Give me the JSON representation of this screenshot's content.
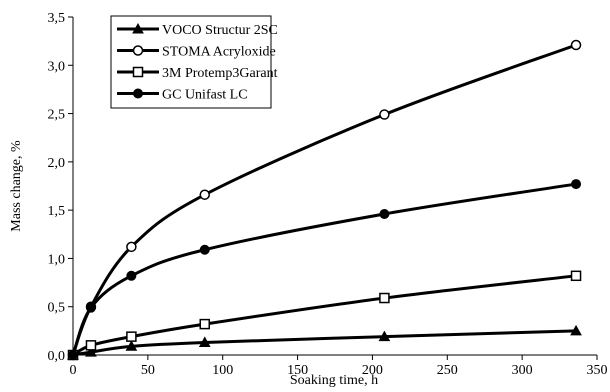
{
  "chart_data": {
    "type": "line",
    "xlabel": "Soaking time, h",
    "ylabel": "Mass change, %",
    "xlim": [
      0,
      350
    ],
    "ylim": [
      0,
      3.5
    ],
    "x_ticks": [
      0,
      50,
      100,
      150,
      200,
      250,
      300,
      350
    ],
    "y_ticks": [
      0,
      0.5,
      1.0,
      1.5,
      2.0,
      2.5,
      3.0,
      3.5
    ],
    "x_tick_labels": [
      "0",
      "50",
      "100",
      "150",
      "200",
      "250",
      "300",
      "350"
    ],
    "y_tick_labels": [
      "0,0",
      "0,5",
      "1,0",
      "1,5",
      "2,0",
      "2,5",
      "3,0",
      "3,5"
    ],
    "grid": false,
    "legend_position": "top-left",
    "x": [
      0,
      12,
      39,
      88,
      208,
      336
    ],
    "series": [
      {
        "name": "VOCO Structur 2SC",
        "marker": "triangle-filled",
        "values": [
          0,
          0.03,
          0.09,
          0.13,
          0.19,
          0.25
        ]
      },
      {
        "name": "STOMA Acryloxide",
        "marker": "circle-open",
        "values": [
          0,
          0.5,
          1.12,
          1.66,
          2.49,
          3.21
        ]
      },
      {
        "name": "3M Protemp3Garant",
        "marker": "square-open",
        "values": [
          0,
          0.1,
          0.19,
          0.32,
          0.59,
          0.82
        ]
      },
      {
        "name": "GC Unifast LC",
        "marker": "circle-filled",
        "values": [
          0,
          0.49,
          0.82,
          1.09,
          1.46,
          1.77
        ]
      }
    ]
  }
}
